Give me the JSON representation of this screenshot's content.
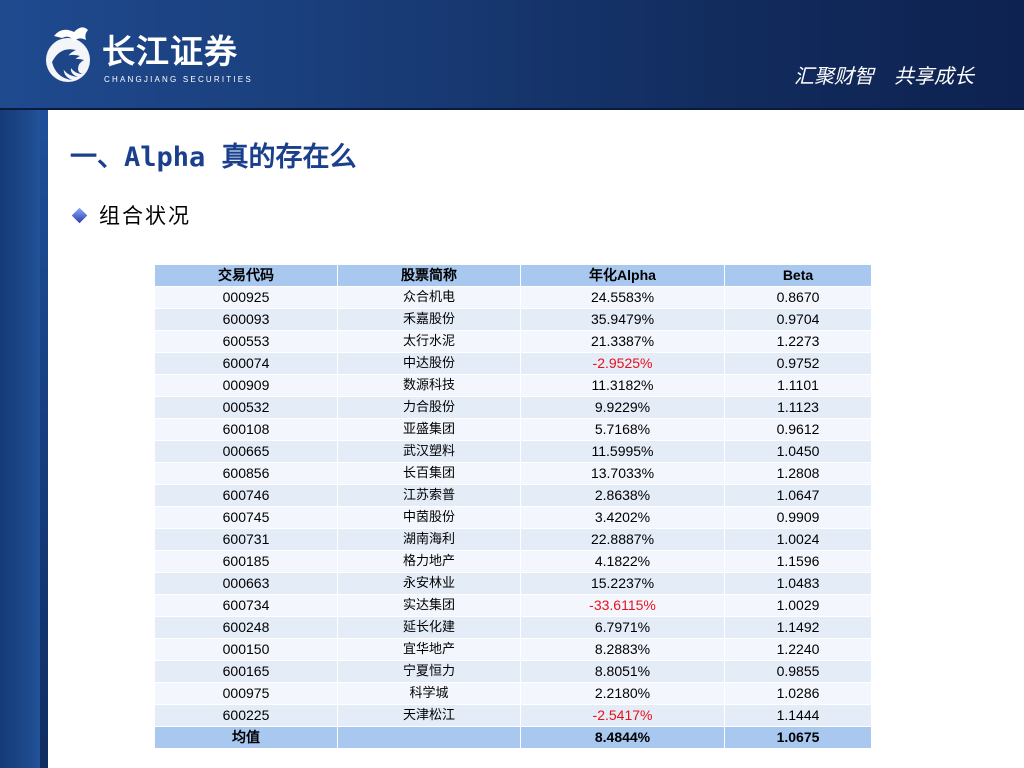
{
  "header": {
    "logo_cn": "长江证券",
    "logo_en": "CHANGJIANG SECURITIES",
    "slogan": "汇聚财智　共享成长"
  },
  "title": "一、Alpha 真的存在么",
  "subtitle": "组合状况",
  "table": {
    "headers": [
      "交易代码",
      "股票简称",
      "年化Alpha",
      "Beta"
    ],
    "rows": [
      {
        "code": "000925",
        "name": "众合机电",
        "alpha": "24.5583%",
        "beta": "0.8670",
        "negative": false
      },
      {
        "code": "600093",
        "name": "禾嘉股份",
        "alpha": "35.9479%",
        "beta": "0.9704",
        "negative": false
      },
      {
        "code": "600553",
        "name": "太行水泥",
        "alpha": "21.3387%",
        "beta": "1.2273",
        "negative": false
      },
      {
        "code": "600074",
        "name": "中达股份",
        "alpha": "-2.9525%",
        "beta": "0.9752",
        "negative": true
      },
      {
        "code": "000909",
        "name": "数源科技",
        "alpha": "11.3182%",
        "beta": "1.1101",
        "negative": false
      },
      {
        "code": "000532",
        "name": "力合股份",
        "alpha": "9.9229%",
        "beta": "1.1123",
        "negative": false
      },
      {
        "code": "600108",
        "name": "亚盛集团",
        "alpha": "5.7168%",
        "beta": "0.9612",
        "negative": false
      },
      {
        "code": "000665",
        "name": "武汉塑料",
        "alpha": "11.5995%",
        "beta": "1.0450",
        "negative": false
      },
      {
        "code": "600856",
        "name": "长百集团",
        "alpha": "13.7033%",
        "beta": "1.2808",
        "negative": false
      },
      {
        "code": "600746",
        "name": "江苏索普",
        "alpha": "2.8638%",
        "beta": "1.0647",
        "negative": false
      },
      {
        "code": "600745",
        "name": "中茵股份",
        "alpha": "3.4202%",
        "beta": "0.9909",
        "negative": false
      },
      {
        "code": "600731",
        "name": "湖南海利",
        "alpha": "22.8887%",
        "beta": "1.0024",
        "negative": false
      },
      {
        "code": "600185",
        "name": "格力地产",
        "alpha": "4.1822%",
        "beta": "1.1596",
        "negative": false
      },
      {
        "code": "000663",
        "name": "永安林业",
        "alpha": "15.2237%",
        "beta": "1.0483",
        "negative": false
      },
      {
        "code": "600734",
        "name": "实达集团",
        "alpha": "-33.6115%",
        "beta": "1.0029",
        "negative": true
      },
      {
        "code": "600248",
        "name": "延长化建",
        "alpha": "6.7971%",
        "beta": "1.1492",
        "negative": false
      },
      {
        "code": "000150",
        "name": "宜华地产",
        "alpha": "8.2883%",
        "beta": "1.2240",
        "negative": false
      },
      {
        "code": "600165",
        "name": "宁夏恒力",
        "alpha": "8.8051%",
        "beta": "0.9855",
        "negative": false
      },
      {
        "code": "000975",
        "name": "科学城",
        "alpha": "2.2180%",
        "beta": "1.0286",
        "negative": false
      },
      {
        "code": "600225",
        "name": "天津松江",
        "alpha": "-2.5417%",
        "beta": "1.1444",
        "negative": true
      }
    ],
    "footer": {
      "label": "均值",
      "name": "",
      "alpha": "8.4844%",
      "beta": "1.0675"
    }
  },
  "colors": {
    "frame": "#1a3f7c",
    "title": "#1a3f8c",
    "header_row": "#a8c8f0",
    "negative": "#e8101a"
  }
}
